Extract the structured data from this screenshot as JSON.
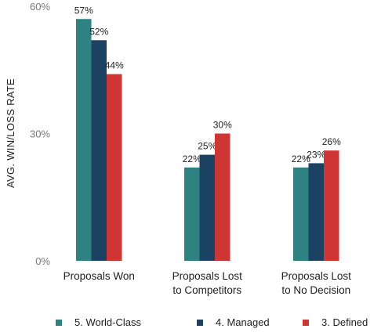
{
  "chart_data": {
    "type": "bar",
    "title": "",
    "xlabel": "",
    "ylabel": "AVG. WIN/LOSS RATE",
    "ylim": [
      0,
      60
    ],
    "y_ticks": [
      "0%",
      "30%",
      "60%"
    ],
    "y_tick_values": [
      0,
      30,
      60
    ],
    "categories": [
      [
        "Proposals Won"
      ],
      [
        "Proposals Lost",
        "to Competitors"
      ],
      [
        "Proposals Lost",
        "to No Decision"
      ]
    ],
    "series": [
      {
        "name": "5. World-Class",
        "color": "#2e8282",
        "values": [
          57,
          22,
          22
        ],
        "labels": [
          "57%",
          "22%",
          "22%"
        ]
      },
      {
        "name": "4. Managed",
        "color": "#1b4263",
        "values": [
          52,
          25,
          23
        ],
        "labels": [
          "52%",
          "25%",
          "23%"
        ]
      },
      {
        "name": "3. Defined",
        "color": "#cf3533",
        "values": [
          44,
          30,
          26
        ],
        "labels": [
          "44%",
          "30%",
          "26%"
        ]
      }
    ],
    "grid": false,
    "legend_position": "bottom"
  }
}
